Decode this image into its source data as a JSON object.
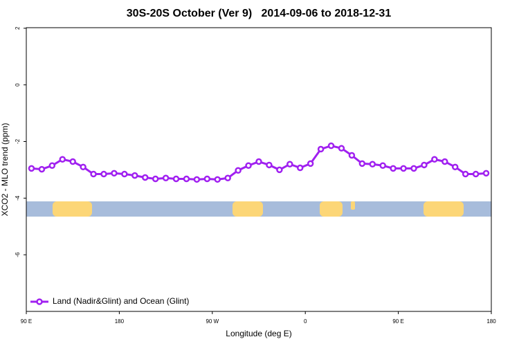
{
  "chart_data": {
    "type": "line",
    "title": "30S-20S October (Ver 9)   2014-09-06 to 2018-12-31",
    "x_label": "Longitude (deg E)",
    "y_label": "XCO2 - MLO trend (ppm)",
    "xlim": [
      90,
      540
    ],
    "ylim": [
      -8,
      2.02
    ],
    "xticks": [
      {
        "value": 90,
        "label": "90 E"
      },
      180,
      {
        "value": 270,
        "label": "90 W"
      },
      {
        "value": 360,
        "label": "0"
      },
      {
        "value": 450,
        "label": "90 E"
      },
      {
        "value": 540,
        "label": "180"
      }
    ],
    "yticks": [
      2,
      0,
      -2,
      -4,
      -6
    ],
    "x": [
      95,
      105,
      115,
      125,
      135,
      145,
      155,
      165,
      175,
      185,
      195,
      205,
      215,
      225,
      235,
      245,
      255,
      265,
      275,
      285,
      295,
      305,
      315,
      325,
      335,
      345,
      355,
      365,
      375,
      385,
      395,
      405,
      415,
      425,
      435,
      445,
      455,
      465,
      475,
      485,
      495,
      505,
      515,
      525,
      535
    ],
    "series": [
      {
        "name": "Land (Nadir&Glint) and Ocean (Glint)",
        "color": "#a020f0",
        "values": [
          -2.95,
          -2.98,
          -2.85,
          -2.63,
          -2.71,
          -2.9,
          -3.15,
          -3.15,
          -3.12,
          -3.15,
          -3.2,
          -3.27,
          -3.32,
          -3.29,
          -3.32,
          -3.32,
          -3.34,
          -3.32,
          -3.34,
          -3.29,
          -3.02,
          -2.85,
          -2.71,
          -2.83,
          -3.0,
          -2.8,
          -2.93,
          -2.78,
          -2.27,
          -2.15,
          -2.24,
          -2.49,
          -2.78,
          -2.8,
          -2.85,
          -2.95,
          -2.95,
          -2.95,
          -2.83,
          -2.63,
          -2.71,
          -2.9,
          -3.15,
          -3.15,
          -3.12
        ]
      }
    ],
    "legend": "bottom-left"
  }
}
